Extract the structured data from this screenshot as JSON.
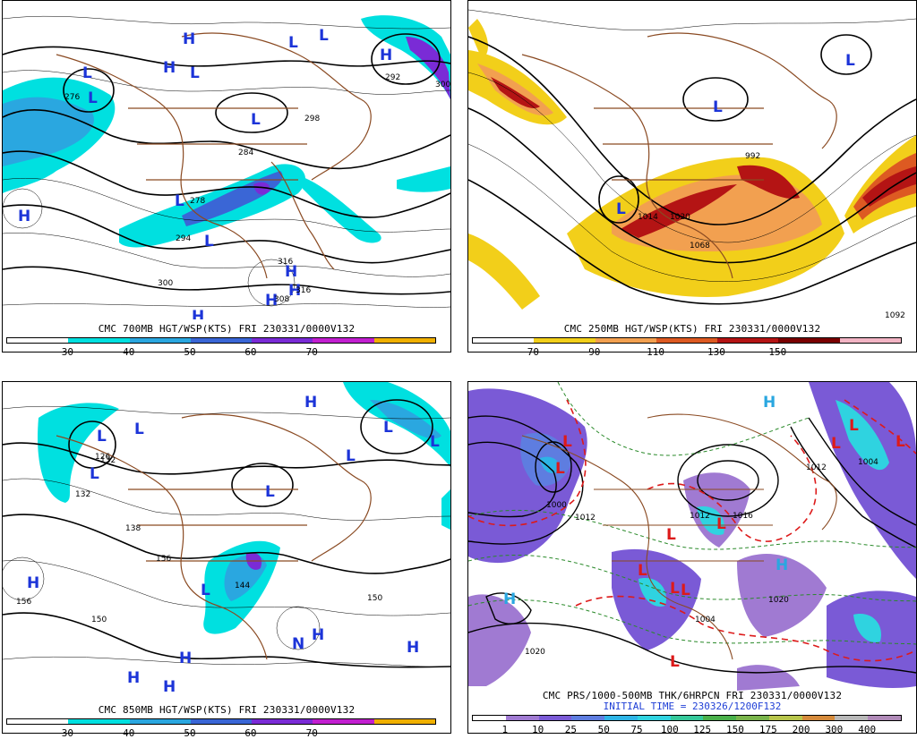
{
  "panels": [
    {
      "caption": "CMC 700MB HGT/WSP(KTS) FRI 230331/0000V132",
      "ticks": [
        "30",
        "40",
        "50",
        "60",
        "70"
      ],
      "colors": [
        "#ffffff",
        "#00e0e0",
        "#2aa7e0",
        "#3a66d6",
        "#7a2bd6",
        "#c21fd0",
        "#f0b000"
      ],
      "centers": [
        {
          "t": "H",
          "c": "#1c34d8"
        },
        {
          "t": "L",
          "c": "#1c34d8"
        },
        {
          "t": "H",
          "c": "#1c34d8"
        },
        {
          "t": "L",
          "c": "#1c34d8"
        },
        {
          "t": "L",
          "c": "#1c34d8"
        },
        {
          "t": "L",
          "c": "#1c34d8"
        },
        {
          "t": "L",
          "c": "#1c34d8"
        },
        {
          "t": "L",
          "c": "#1c34d8"
        },
        {
          "t": "H",
          "c": "#1c34d8"
        },
        {
          "t": "L",
          "c": "#1c34d8"
        },
        {
          "t": "L",
          "c": "#1c34d8"
        },
        {
          "t": "H",
          "c": "#1c34d8"
        },
        {
          "t": "H",
          "c": "#1c34d8"
        },
        {
          "t": "H",
          "c": "#1c34d8"
        },
        {
          "t": "H",
          "c": "#1c34d8"
        },
        {
          "t": "H",
          "c": "#1c34d8"
        }
      ],
      "labels": [
        "276",
        "292",
        "298",
        "284",
        "278",
        "294",
        "300",
        "316",
        "300",
        "316",
        "308"
      ]
    },
    {
      "caption": "CMC 250MB HGT/WSP(KTS) FRI 230331/0000V132",
      "ticks": [
        "70",
        "90",
        "110",
        "130",
        "150"
      ],
      "colors": [
        "#ffffff",
        "#f2cf1a",
        "#f2a050",
        "#dd5a22",
        "#b41414",
        "#7a0000",
        "#f2b4c4"
      ],
      "centers": [
        {
          "t": "L",
          "c": "#1c34d8"
        },
        {
          "t": "L",
          "c": "#1c34d8"
        },
        {
          "t": "L",
          "c": "#1c34d8"
        }
      ],
      "labels": [
        "992",
        "1014",
        "1020",
        "1068",
        "1092"
      ]
    },
    {
      "caption": "CMC 850MB HGT/WSP(KTS) FRI 230331/0000V132",
      "ticks": [
        "30",
        "40",
        "50",
        "60",
        "70"
      ],
      "colors": [
        "#ffffff",
        "#00e0e0",
        "#2aa7e0",
        "#3a66d6",
        "#7a2bd6",
        "#c21fd0",
        "#f0b000"
      ],
      "centers": [
        {
          "t": "H",
          "c": "#1c34d8"
        },
        {
          "t": "L",
          "c": "#1c34d8"
        },
        {
          "t": "L",
          "c": "#1c34d8"
        },
        {
          "t": "L",
          "c": "#1c34d8"
        },
        {
          "t": "L",
          "c": "#1c34d8"
        },
        {
          "t": "L",
          "c": "#1c34d8"
        },
        {
          "t": "L",
          "c": "#1c34d8"
        },
        {
          "t": "L",
          "c": "#1c34d8"
        },
        {
          "t": "H",
          "c": "#1c34d8"
        },
        {
          "t": "L",
          "c": "#1c34d8"
        },
        {
          "t": "H",
          "c": "#1c34d8"
        },
        {
          "t": "N",
          "c": "#1c34d8"
        },
        {
          "t": "H",
          "c": "#1c34d8"
        },
        {
          "t": "H",
          "c": "#1c34d8"
        },
        {
          "t": "H",
          "c": "#1c34d8"
        },
        {
          "t": "H",
          "c": "#1c34d8"
        }
      ],
      "labels": [
        "126",
        "132",
        "138",
        "132",
        "156",
        "150",
        "144",
        "156",
        "150"
      ]
    },
    {
      "caption": "CMC PRS/1000-500MB THK/6HRPCN FRI 230331/0000V132",
      "caption2": "INITIAL TIME = 230326/1200F132",
      "ticks": [
        "1",
        "10",
        "25",
        "50",
        "75",
        "100",
        "125",
        "150",
        "175",
        "200",
        "300",
        "400"
      ],
      "colors": [
        "#ffffff",
        "#a07ad2",
        "#7a5ad6",
        "#5e7de0",
        "#2db4e6",
        "#2fd3e0",
        "#34c89a",
        "#49b04a",
        "#79b44b",
        "#b7c54b",
        "#d58a3b",
        "#b8b8b8",
        "#b08ab8"
      ],
      "centers": [
        {
          "t": "L",
          "c": "#dd1a1a"
        },
        {
          "t": "L",
          "c": "#dd1a1a"
        },
        {
          "t": "L",
          "c": "#dd1a1a"
        },
        {
          "t": "L",
          "c": "#dd1a1a"
        },
        {
          "t": "L",
          "c": "#dd1a1a"
        },
        {
          "t": "L",
          "c": "#dd1a1a"
        },
        {
          "t": "L",
          "c": "#dd1a1a"
        },
        {
          "t": "L",
          "c": "#dd1a1a"
        },
        {
          "t": "H",
          "c": "#2aa7e0"
        },
        {
          "t": "H",
          "c": "#2aa7e0"
        },
        {
          "t": "H",
          "c": "#2aa7e0"
        },
        {
          "t": "L",
          "c": "#dd1a1a"
        },
        {
          "t": "L",
          "c": "#dd1a1a"
        },
        {
          "t": "L",
          "c": "#dd1a1a"
        }
      ],
      "labels": [
        "1000",
        "1012",
        "1004",
        "1012",
        "1020",
        "1004",
        "1012",
        "1016",
        "1020"
      ]
    }
  ]
}
